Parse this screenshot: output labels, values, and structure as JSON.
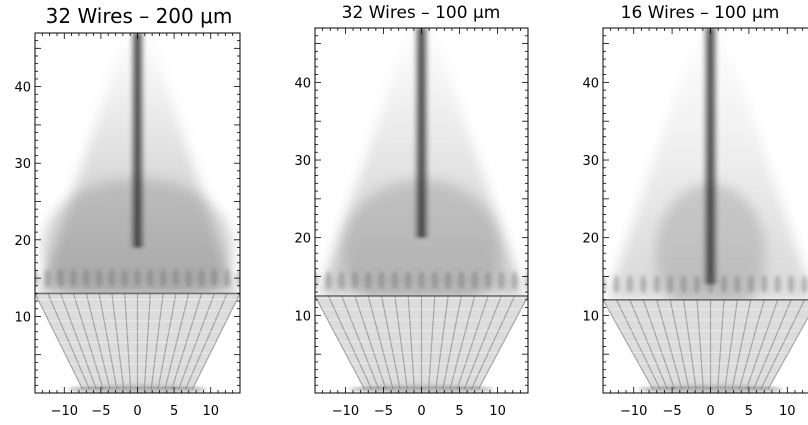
{
  "chart_data": [
    {
      "type": "heatmap",
      "title": "32 Wires – 200 μm",
      "xlabel": "",
      "ylabel": "",
      "xlim": [
        -14,
        14
      ],
      "ylim": [
        0,
        47
      ],
      "x_ticks": [
        "−10",
        "−5",
        "0",
        "5",
        "10"
      ],
      "y_ticks": [
        "10",
        "20",
        "30",
        "40"
      ],
      "colormap": "greyscale (white = low density, dark = high density)",
      "features": {
        "wire_count": 32,
        "wire_array_top_height": 13,
        "central_column_from": 19,
        "plasma_spread": "wide"
      }
    },
    {
      "type": "heatmap",
      "title": "32 Wires – 100 μm",
      "xlabel": "",
      "ylabel": "",
      "xlim": [
        -14,
        14
      ],
      "ylim": [
        0,
        47
      ],
      "x_ticks": [
        "−10",
        "−5",
        "0",
        "5",
        "10"
      ],
      "y_ticks": [
        "10",
        "20",
        "30",
        "40"
      ],
      "colormap": "greyscale (white = low density, dark = high density)",
      "features": {
        "wire_count": 32,
        "wire_array_top_height": 12.5,
        "central_column_from": 20,
        "plasma_spread": "medium"
      }
    },
    {
      "type": "heatmap",
      "title": "16 Wires – 100 μm",
      "xlabel": "",
      "ylabel": "",
      "xlim": [
        -14,
        14
      ],
      "ylim": [
        0,
        47
      ],
      "x_ticks": [
        "−10",
        "−5",
        "0",
        "5",
        "10"
      ],
      "y_ticks": [
        "10",
        "20",
        "30",
        "40"
      ],
      "colormap": "greyscale (white = low density, dark = high density)",
      "features": {
        "wire_count": 16,
        "wire_array_top_height": 12,
        "central_column_from": 14,
        "plasma_spread": "narrow, turbulent"
      }
    }
  ]
}
